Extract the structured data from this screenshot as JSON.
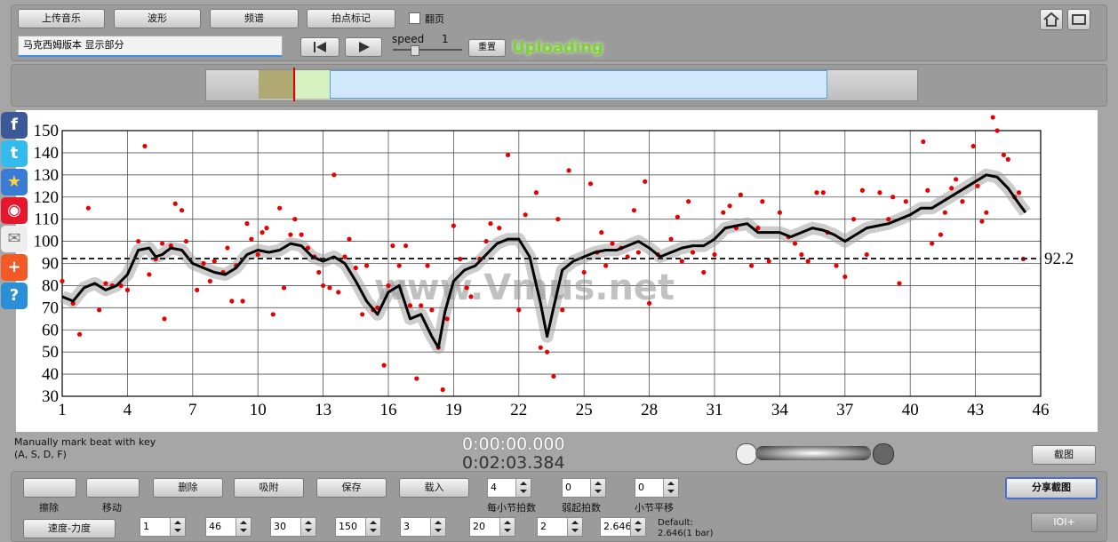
{
  "toolbar": {
    "buttons": [
      "上传音乐",
      "波形",
      "频谱",
      "拍点标记"
    ],
    "checkbox_label": "翻页",
    "input_text": "马克西姆版本 显示部分",
    "speed_label": "speed",
    "speed_value": "1",
    "reset": "重置",
    "status": "Uploading"
  },
  "chart_data": {
    "type": "scatter",
    "color": "#e60000",
    "x": [
      1,
      1.5,
      1.8,
      2.2,
      2.7,
      3,
      3.3,
      3.7,
      4,
      4.5,
      4.8,
      5,
      5.3,
      5.6,
      5.7,
      6,
      6.2,
      6.5,
      6.7,
      7.2,
      7.5,
      7.8,
      8,
      8.4,
      8.6,
      8.8,
      9,
      9.3,
      9.5,
      9.7,
      10,
      10.2,
      10.4,
      10.7,
      11,
      11.2,
      11.5,
      11.7,
      12,
      12.3,
      12.6,
      12.8,
      13,
      13.3,
      13.5,
      13.7,
      14,
      14.2,
      14.5,
      14.8,
      15,
      15.3,
      15.5,
      15.8,
      16,
      16.2,
      16.5,
      16.8,
      17,
      17.3,
      17.5,
      17.8,
      18,
      18.3,
      18.5,
      18.7,
      19,
      19.3,
      19.6,
      19.8,
      20.2,
      20.5,
      20.7,
      21.1,
      21.5,
      22,
      22.3,
      22.8,
      23,
      23.3,
      23.6,
      23.8,
      24,
      24.3,
      25,
      25.3,
      25.6,
      25.8,
      26,
      26.3,
      26.7,
      27,
      27.3,
      27.5,
      27.8,
      28,
      28.4,
      29,
      29.3,
      29.5,
      29.8,
      30,
      30.5,
      31,
      31.4,
      31.7,
      32,
      32.2,
      32.7,
      33,
      33.2,
      33.5,
      34,
      34.4,
      34.7,
      35,
      35.3,
      35.7,
      36,
      36.2,
      36.6,
      37,
      37.4,
      37.8,
      38,
      38.6,
      39,
      39.2,
      39.5,
      39.8,
      40.6,
      40.8,
      41,
      41.4,
      41.6,
      41.9,
      42.1,
      42.4,
      42.9,
      43.1,
      43.3,
      43.5,
      43.8,
      44,
      44.3,
      44.5,
      44.8,
      45,
      45.2
    ],
    "values": [
      82,
      72,
      58,
      115,
      69,
      81,
      80,
      80,
      78,
      100,
      143,
      85,
      92,
      99,
      65,
      98,
      117,
      114,
      100,
      78,
      90,
      82,
      91,
      86,
      97,
      73,
      89,
      73,
      108,
      101,
      94,
      104,
      106,
      67,
      115,
      79,
      103,
      110,
      103,
      97,
      93,
      86,
      80,
      79,
      130,
      77,
      93,
      101,
      88,
      67,
      89,
      69,
      70,
      44,
      80,
      98,
      89,
      98,
      71,
      38,
      71,
      89,
      69,
      52,
      33,
      65,
      107,
      92,
      79,
      75,
      92,
      100,
      108,
      106,
      139,
      69,
      112,
      122,
      52,
      50,
      39,
      110,
      69,
      132,
      86,
      126,
      95,
      104,
      89,
      99,
      97,
      93,
      114,
      95,
      127,
      72,
      94,
      101,
      111,
      91,
      118,
      95,
      86,
      94,
      113,
      116,
      106,
      121,
      89,
      106,
      118,
      91,
      113,
      102,
      99,
      94,
      91,
      122,
      122,
      104,
      89,
      84,
      110,
      123,
      94,
      122,
      110,
      120,
      81,
      118,
      145,
      123,
      99,
      103,
      113,
      124,
      128,
      118,
      143,
      125,
      109,
      113,
      156,
      150,
      139,
      137,
      120,
      122,
      92
    ],
    "trend": {
      "color": "#000000",
      "x": [
        1,
        1.5,
        2,
        2.5,
        3,
        3.5,
        4,
        4.5,
        5,
        5.3,
        5.6,
        6,
        6.5,
        7,
        7.5,
        8,
        8.5,
        9,
        9.5,
        10,
        10.5,
        11,
        11.5,
        12,
        12.5,
        13,
        13.5,
        14,
        14.5,
        15,
        15.5,
        16,
        16.5,
        17,
        17.5,
        18,
        18.3,
        18.6,
        19,
        19.5,
        20,
        20.5,
        21,
        21.5,
        22,
        22.5,
        23,
        23.3,
        23.6,
        24,
        24.5,
        25,
        25.5,
        26,
        26.5,
        27,
        27.5,
        28,
        28.5,
        29,
        29.5,
        30,
        30.5,
        31,
        31.5,
        32,
        32.5,
        33,
        33.5,
        34,
        34.5,
        35,
        35.5,
        36,
        36.5,
        37,
        37.5,
        38,
        38.5,
        39,
        39.5,
        40,
        40.5,
        41,
        41.5,
        42,
        42.5,
        43,
        43.5,
        44,
        44.5,
        45,
        45.3
      ],
      "values": [
        75,
        73,
        79,
        81,
        78,
        80,
        85,
        96,
        97,
        93,
        94,
        97,
        96,
        90,
        88,
        86,
        85,
        88,
        94,
        96,
        95,
        96,
        99,
        98,
        93,
        91,
        93,
        90,
        82,
        73,
        67,
        77,
        80,
        65,
        67,
        57,
        52,
        68,
        82,
        87,
        89,
        94,
        99,
        101,
        101,
        93,
        72,
        57,
        70,
        87,
        91,
        93,
        95,
        96,
        96,
        98,
        100,
        97,
        93,
        95,
        97,
        98,
        98,
        101,
        106,
        107,
        108,
        104,
        104,
        104,
        102,
        104,
        106,
        105,
        103,
        100,
        103,
        106,
        107,
        108,
        110,
        112,
        115,
        115,
        118,
        121,
        124,
        127,
        130,
        129,
        124,
        117,
        113
      ]
    },
    "hline": 92.2,
    "watermark": "www.Vmus.net",
    "xlim": [
      1,
      46
    ],
    "xticks": [
      1,
      4,
      7,
      10,
      13,
      16,
      19,
      22,
      25,
      28,
      31,
      34,
      37,
      40,
      43,
      46
    ],
    "ylim": [
      30,
      150
    ],
    "yticks": [
      30,
      40,
      50,
      60,
      70,
      80,
      90,
      100,
      110,
      120,
      130,
      140,
      150
    ],
    "grid": true
  },
  "status": {
    "hint": [
      "Manually mark beat with key",
      "(A, S, D, F)"
    ],
    "time_current": "0:00:00.000",
    "time_total": "0:02:03.384",
    "screenshot": "截图"
  },
  "tools": {
    "icon_buttons": [
      "擦除",
      "移动"
    ],
    "buttons": [
      "删除",
      "吸附",
      "保存",
      "载入"
    ],
    "spinners": [
      {
        "value": "4",
        "label": "每小节拍数"
      },
      {
        "value": "0",
        "label": "弱起拍数"
      },
      {
        "value": "0",
        "label": "小节平移"
      }
    ],
    "share": "分享截图",
    "ioi": "IOI+",
    "tempo_button": "速度-力度",
    "row2_values": [
      "1",
      "46",
      "30",
      "150",
      "3",
      "20",
      "2",
      "2.646"
    ],
    "default": [
      "Default:",
      "2.646(1 bar)"
    ]
  }
}
